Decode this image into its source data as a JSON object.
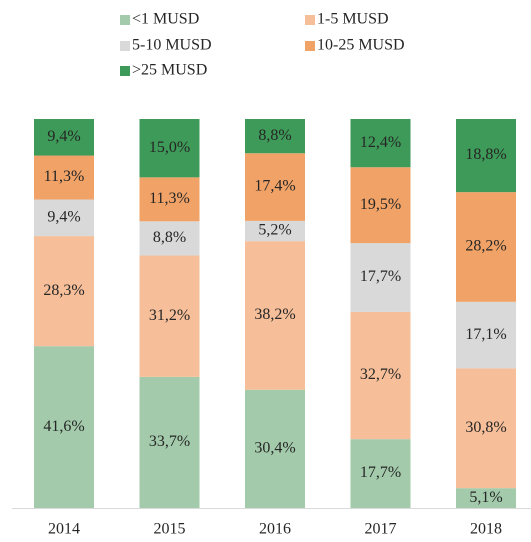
{
  "chart_data": {
    "type": "stacked_bar",
    "categories": [
      "2014",
      "2015",
      "2016",
      "2017",
      "2018"
    ],
    "series": [
      {
        "name": "<1 MUSD",
        "color": "#a3cbab",
        "values": [
          41.6,
          33.7,
          30.4,
          17.7,
          5.1
        ],
        "value_labels": [
          "41,6%",
          "33,7%",
          "30,4%",
          "17,7%",
          "5,1%"
        ]
      },
      {
        "name": "1-5 MUSD",
        "color": "#f6bf99",
        "values": [
          28.3,
          31.2,
          38.2,
          32.7,
          30.8
        ],
        "value_labels": [
          "28,3%",
          "31,2%",
          "38,2%",
          "32,7%",
          "30,8%"
        ]
      },
      {
        "name": "5-10 MUSD",
        "color": "#d9d9d9",
        "values": [
          9.4,
          8.8,
          5.2,
          17.7,
          17.1
        ],
        "value_labels": [
          "9,4%",
          "8,8%",
          "5,2%",
          "17,7%",
          "17,1%"
        ]
      },
      {
        "name": "10-25 MUSD",
        "color": "#f1a367",
        "values": [
          11.3,
          11.3,
          17.4,
          19.5,
          28.2
        ],
        "value_labels": [
          "11,3%",
          "11,3%",
          "17,4%",
          "19,5%",
          "28,2%"
        ]
      },
      {
        "name": ">25 MUSD",
        "color": "#3d9a58",
        "values": [
          9.4,
          15.0,
          8.8,
          12.4,
          18.8
        ],
        "value_labels": [
          "9,4%",
          "15,0%",
          "8,8%",
          "12,4%",
          "18,8%"
        ]
      }
    ],
    "legend": "top"
  }
}
